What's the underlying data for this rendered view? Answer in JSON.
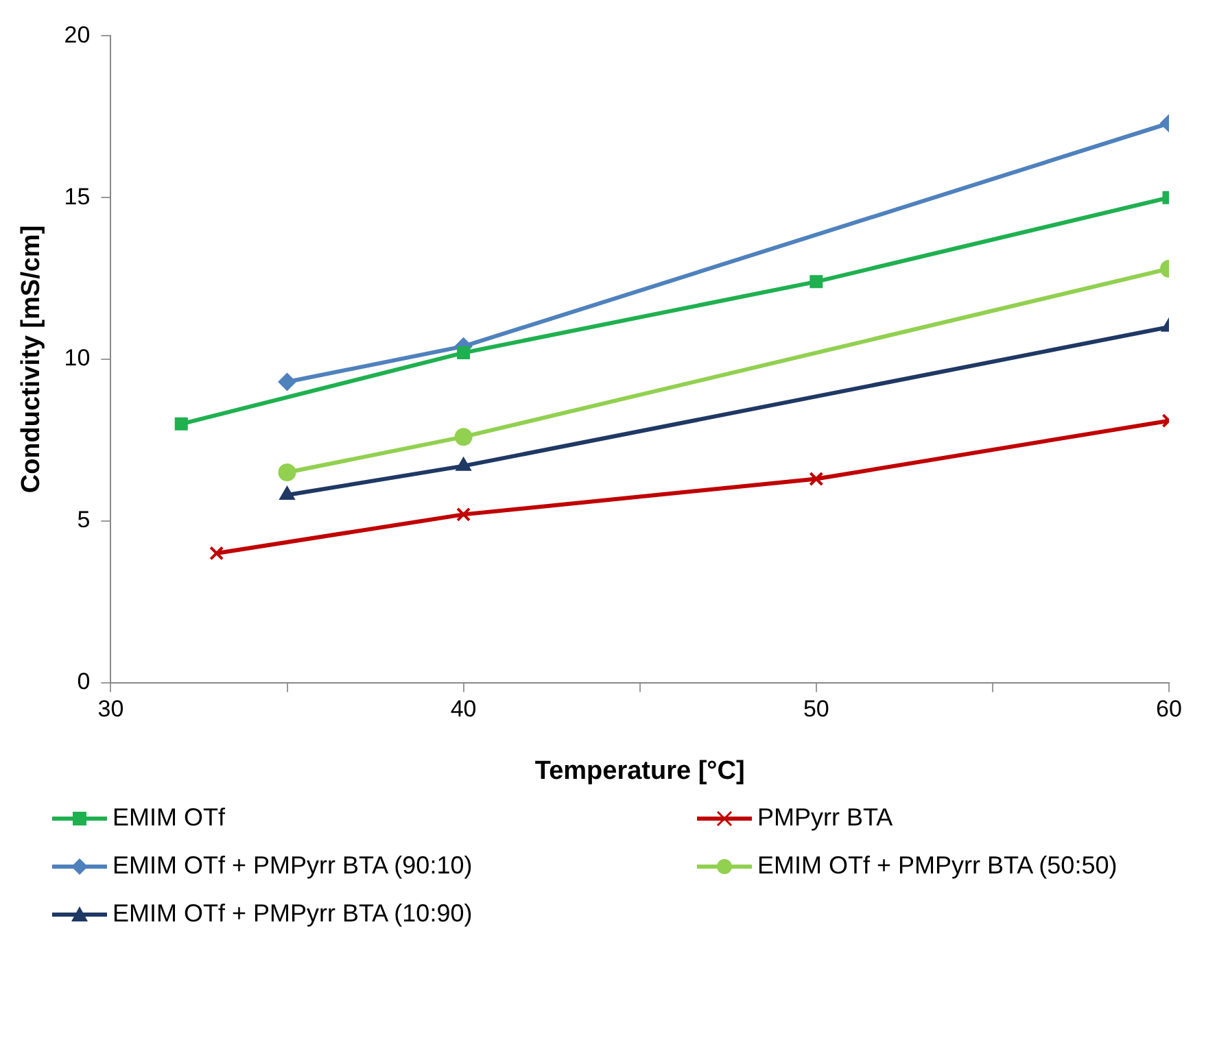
{
  "chart_data": {
    "type": "line",
    "xlabel": "Temperature [°C]",
    "ylabel": "Conductivity [mS/cm]",
    "xlim": [
      30,
      60
    ],
    "xticks": [
      30,
      {
        "value": 35,
        "label": null
      },
      40,
      {
        "value": 45,
        "label": null
      },
      50,
      {
        "value": 55,
        "label": null
      },
      60
    ],
    "ylim": [
      0,
      20
    ],
    "yticks": [
      0,
      5,
      10,
      15,
      20
    ],
    "grid": false,
    "legend": "bottom",
    "line_style": "solid",
    "series": [
      {
        "name": "EMIM OTf",
        "color": "#1fb050",
        "marker": "square",
        "x": [
          32,
          40,
          50,
          60
        ],
        "values": [
          8.0,
          10.2,
          12.4,
          15.0
        ]
      },
      {
        "name": "PMPyrr BTA",
        "color": "#c00000",
        "marker": "cross",
        "x": [
          33,
          40,
          50,
          60
        ],
        "values": [
          4.0,
          5.2,
          6.3,
          8.1
        ]
      },
      {
        "name": "EMIM OTf + PMPyrr BTA (90:10)",
        "color": "#4f81bd",
        "marker": "diamond",
        "x": [
          35,
          40,
          60
        ],
        "values": [
          9.3,
          10.4,
          17.3
        ]
      },
      {
        "name": "EMIM OTf + PMPyrr BTA (50:50)",
        "color": "#92d050",
        "marker": "circle",
        "x": [
          35,
          40,
          60
        ],
        "values": [
          6.5,
          7.6,
          12.8
        ]
      },
      {
        "name": "EMIM OTf + PMPyrr BTA (10:90)",
        "color": "#1f3864",
        "marker": "triangle",
        "x": [
          35,
          40,
          60
        ],
        "values": [
          5.8,
          6.7,
          11.0
        ]
      }
    ]
  }
}
